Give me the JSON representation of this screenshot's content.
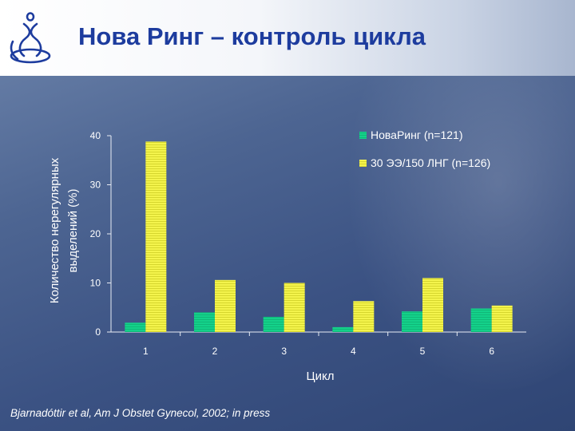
{
  "slide": {
    "title": "Нова Ринг – контроль цикла",
    "footnote": "Bjarnadóttir et al, Am J Obstet Gynecol, 2002; in press"
  },
  "colors": {
    "title": "#1d3c9e",
    "series1": "#14d18a",
    "series2": "#f2f24a"
  },
  "chart_data": {
    "type": "bar",
    "categories": [
      "1",
      "2",
      "3",
      "4",
      "5",
      "6"
    ],
    "series": [
      {
        "name": "НоваРинг (n=121)",
        "values": [
          1.9,
          4.0,
          3.1,
          1.0,
          4.2,
          4.8
        ]
      },
      {
        "name": "30 ЭЭ/150 ЛНГ (n=126)",
        "values": [
          38.8,
          10.6,
          10.0,
          6.3,
          11.0,
          5.4
        ]
      }
    ],
    "xlabel": "Цикл",
    "ylabel_lines": [
      "Количество нерегулярных",
      "выделений (%)"
    ],
    "ylim": [
      0,
      40
    ],
    "yticks": [
      0,
      10,
      20,
      30,
      40
    ],
    "grid": false,
    "legend": "top-right"
  }
}
